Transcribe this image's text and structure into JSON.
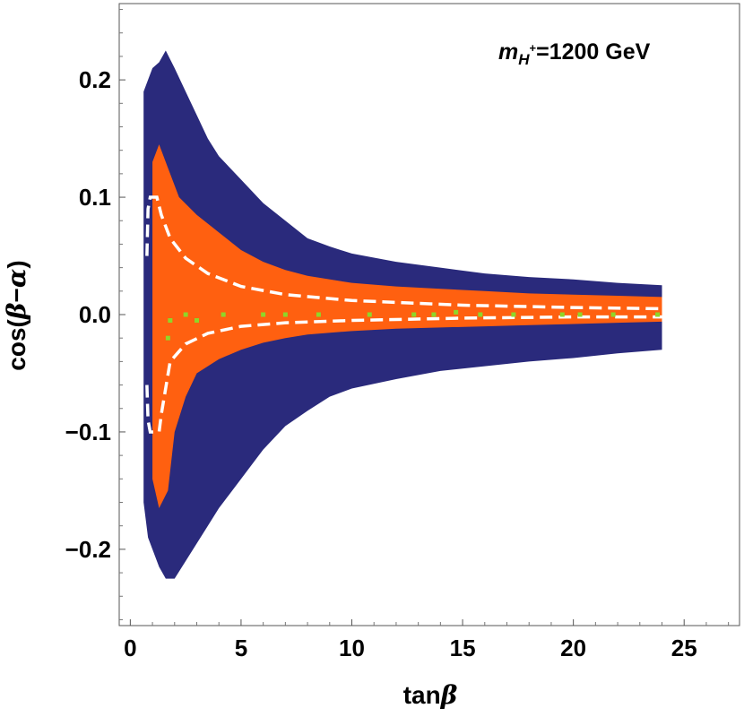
{
  "chart_data": {
    "type": "scatter",
    "title": "",
    "annotation": {
      "m": "m",
      "sub": "H",
      "sup": "+",
      "rest": "=1200 GeV"
    },
    "xlabel": {
      "main": "tan",
      "greek": "β"
    },
    "ylabel": {
      "prefix": "cos(",
      "greek1": "β",
      "minus": "−",
      "greek2": "α",
      "suffix": ")"
    },
    "xlim": [
      -0.5,
      27.5
    ],
    "ylim": [
      -0.265,
      0.265
    ],
    "xticks": [
      {
        "value": 0,
        "label": "0"
      },
      {
        "value": 5,
        "label": "5"
      },
      {
        "value": 10,
        "label": "10"
      },
      {
        "value": 15,
        "label": "15"
      },
      {
        "value": 20,
        "label": "20"
      },
      {
        "value": 25,
        "label": "25"
      }
    ],
    "yticks": [
      {
        "value": 0.2,
        "label": "0.2"
      },
      {
        "value": 0.1,
        "label": "0.1"
      },
      {
        "value": 0.0,
        "label": "0.0"
      },
      {
        "value": -0.1,
        "label": "−0.1"
      },
      {
        "value": -0.2,
        "label": "−0.2"
      }
    ],
    "colors": {
      "outer_region": "#2a2a7c",
      "inner_region": "#ff6010",
      "dashed_curves": "#ffffff",
      "green_points": "#8fd629"
    },
    "series": [
      {
        "kind": "region",
        "color_key": "outer_region",
        "upper": [
          [
            0.6,
            0.19
          ],
          [
            0.8,
            0.2
          ],
          [
            1.0,
            0.21
          ],
          [
            1.3,
            0.215
          ],
          [
            1.6,
            0.225
          ],
          [
            2.0,
            0.21
          ],
          [
            2.5,
            0.19
          ],
          [
            3.0,
            0.17
          ],
          [
            3.5,
            0.15
          ],
          [
            4.0,
            0.135
          ],
          [
            5.0,
            0.115
          ],
          [
            6.0,
            0.095
          ],
          [
            7.0,
            0.08
          ],
          [
            8.0,
            0.065
          ],
          [
            9.0,
            0.058
          ],
          [
            10.0,
            0.052
          ],
          [
            12.0,
            0.045
          ],
          [
            14.0,
            0.04
          ],
          [
            16.0,
            0.035
          ],
          [
            18.0,
            0.032
          ],
          [
            20.0,
            0.03
          ],
          [
            22.0,
            0.027
          ],
          [
            24.0,
            0.025
          ]
        ],
        "lower": [
          [
            0.6,
            -0.16
          ],
          [
            0.8,
            -0.19
          ],
          [
            1.0,
            -0.2
          ],
          [
            1.3,
            -0.215
          ],
          [
            1.6,
            -0.225
          ],
          [
            2.0,
            -0.225
          ],
          [
            2.5,
            -0.21
          ],
          [
            3.0,
            -0.195
          ],
          [
            3.5,
            -0.18
          ],
          [
            4.0,
            -0.165
          ],
          [
            5.0,
            -0.14
          ],
          [
            6.0,
            -0.115
          ],
          [
            7.0,
            -0.095
          ],
          [
            8.0,
            -0.082
          ],
          [
            9.0,
            -0.07
          ],
          [
            10.0,
            -0.063
          ],
          [
            12.0,
            -0.055
          ],
          [
            14.0,
            -0.048
          ],
          [
            16.0,
            -0.044
          ],
          [
            18.0,
            -0.04
          ],
          [
            20.0,
            -0.037
          ],
          [
            22.0,
            -0.033
          ],
          [
            24.0,
            -0.03
          ]
        ]
      },
      {
        "kind": "region",
        "color_key": "inner_region",
        "upper": [
          [
            1.0,
            0.13
          ],
          [
            1.3,
            0.145
          ],
          [
            1.7,
            0.125
          ],
          [
            2.2,
            0.1
          ],
          [
            3.0,
            0.085
          ],
          [
            4.0,
            0.07
          ],
          [
            5.0,
            0.055
          ],
          [
            6.0,
            0.045
          ],
          [
            7.0,
            0.038
          ],
          [
            8.0,
            0.033
          ],
          [
            10.0,
            0.027
          ],
          [
            12.0,
            0.024
          ],
          [
            14.0,
            0.022
          ],
          [
            16.0,
            0.02
          ],
          [
            18.0,
            0.018
          ],
          [
            20.0,
            0.017
          ],
          [
            22.0,
            0.016
          ],
          [
            24.0,
            0.015
          ]
        ],
        "lower": [
          [
            1.0,
            -0.14
          ],
          [
            1.3,
            -0.165
          ],
          [
            1.7,
            -0.15
          ],
          [
            2.0,
            -0.1
          ],
          [
            2.5,
            -0.07
          ],
          [
            3.0,
            -0.05
          ],
          [
            4.0,
            -0.038
          ],
          [
            5.0,
            -0.03
          ],
          [
            6.0,
            -0.024
          ],
          [
            7.0,
            -0.02
          ],
          [
            8.0,
            -0.017
          ],
          [
            10.0,
            -0.014
          ],
          [
            12.0,
            -0.012
          ],
          [
            14.0,
            -0.011
          ],
          [
            16.0,
            -0.01
          ],
          [
            18.0,
            -0.009
          ],
          [
            20.0,
            -0.008
          ],
          [
            22.0,
            -0.007
          ],
          [
            24.0,
            -0.006
          ]
        ]
      },
      {
        "kind": "dashed_curve",
        "color_key": "dashed_curves",
        "points": [
          [
            0.75,
            0.05
          ],
          [
            0.8,
            0.09
          ],
          [
            0.9,
            0.1
          ],
          [
            1.2,
            0.1
          ],
          [
            1.4,
            0.085
          ],
          [
            1.8,
            0.065
          ],
          [
            2.5,
            0.048
          ],
          [
            3.5,
            0.035
          ],
          [
            5.0,
            0.024
          ],
          [
            7.0,
            0.017
          ],
          [
            10.0,
            0.012
          ],
          [
            15.0,
            0.008
          ],
          [
            20.0,
            0.006
          ],
          [
            24.0,
            0.005
          ]
        ]
      },
      {
        "kind": "dashed_curve",
        "color_key": "dashed_curves",
        "points": [
          [
            0.75,
            -0.06
          ],
          [
            0.8,
            -0.09
          ],
          [
            0.9,
            -0.1
          ],
          [
            1.3,
            -0.1
          ],
          [
            1.4,
            -0.085
          ],
          [
            1.8,
            -0.04
          ],
          [
            2.5,
            -0.025
          ],
          [
            3.5,
            -0.016
          ],
          [
            5.0,
            -0.01
          ],
          [
            7.0,
            -0.007
          ],
          [
            10.0,
            -0.005
          ],
          [
            15.0,
            -0.003
          ],
          [
            20.0,
            -0.002
          ],
          [
            24.0,
            -0.002
          ]
        ]
      },
      {
        "kind": "points",
        "color_key": "green_points",
        "points": [
          [
            1.7,
            -0.02
          ],
          [
            1.8,
            -0.005
          ],
          [
            2.5,
            0.0
          ],
          [
            3.0,
            -0.005
          ],
          [
            4.2,
            0.0
          ],
          [
            6.0,
            0.0
          ],
          [
            7.0,
            0.0
          ],
          [
            8.5,
            0.0
          ],
          [
            10.8,
            0.0
          ],
          [
            12.8,
            0.0
          ],
          [
            13.7,
            0.0
          ],
          [
            14.7,
            0.002
          ],
          [
            15.8,
            0.0
          ],
          [
            17.3,
            0.0
          ],
          [
            19.5,
            0.0
          ],
          [
            20.3,
            0.0
          ],
          [
            21.8,
            0.0
          ],
          [
            23.8,
            0.0
          ]
        ]
      }
    ]
  }
}
